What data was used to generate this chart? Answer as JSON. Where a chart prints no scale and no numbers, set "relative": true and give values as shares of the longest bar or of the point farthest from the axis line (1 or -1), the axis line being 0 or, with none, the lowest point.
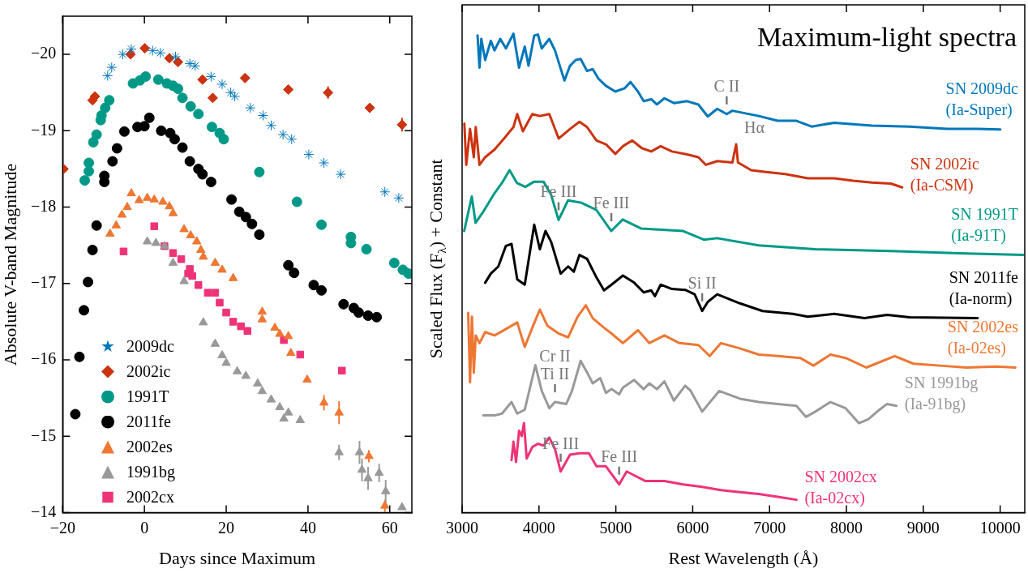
{
  "chart_data": [
    {
      "type": "scatter",
      "xlabel": "Days since Maximum",
      "ylabel": "Absolute V-band Magnitude",
      "xlim": [
        -20,
        65.4
      ],
      "ylim": [
        -14,
        -20.5
      ],
      "xticks": [
        -20,
        0,
        20,
        40,
        60
      ],
      "yticks": [
        -20,
        -19,
        -18,
        -17,
        -16,
        -15,
        -14
      ],
      "grid": false,
      "legend": "bottom left",
      "series": [
        {
          "name": "2009dc",
          "color": "#0077bb",
          "marker": "cross",
          "x": [
            -9.0,
            -8.0,
            -5.3,
            -3.2,
            2.0,
            3.9,
            7.6,
            11.1,
            12.4,
            16.3,
            19.0,
            21.1,
            22.1,
            25.9,
            29.0,
            31.0,
            33.9,
            36.0,
            40.2,
            43.9,
            48.0,
            58.8,
            62.2
          ],
          "values": [
            -19.72,
            -19.83,
            -20.0,
            -20.07,
            -20.05,
            -20.02,
            -19.97,
            -19.88,
            -19.85,
            -19.71,
            -19.61,
            -19.5,
            -19.45,
            -19.3,
            -19.2,
            -19.07,
            -18.95,
            -18.89,
            -18.69,
            -18.58,
            -18.43,
            -18.2,
            -18.12
          ]
        },
        {
          "name": "2002ic",
          "color": "#cc3311",
          "marker": "diamond",
          "x": [
            -19.8,
            -12.7,
            -12.1,
            -3.4,
            0.1,
            6.1,
            8.2,
            14.2,
            16.7,
            24.6,
            35.2,
            44.9,
            55.1,
            63.0
          ],
          "values": [
            -18.5,
            -19.4,
            -19.45,
            -20.0,
            -20.08,
            -19.95,
            -19.9,
            -19.67,
            -19.43,
            -19.69,
            -19.54,
            -19.5,
            -19.3,
            -19.08
          ],
          "errors": [
            null,
            null,
            null,
            null,
            null,
            null,
            null,
            null,
            null,
            null,
            null,
            0.08,
            null,
            0.09
          ]
        },
        {
          "name": "1991T",
          "color": "#009988",
          "marker": "circle",
          "x": [
            -14.6,
            -13.6,
            -13.6,
            -12.5,
            -11.7,
            -10.7,
            -10.5,
            -9.6,
            -8.6,
            -2.8,
            -1.1,
            0.3,
            3.4,
            5.5,
            7.0,
            8.2,
            9.3,
            11.3,
            13.2,
            16.5,
            18.4,
            19.4,
            28.1,
            37.3,
            43.3,
            50.5,
            50.5,
            54.3,
            61.1,
            63.2,
            64.6
          ],
          "values": [
            -18.35,
            -18.47,
            -18.58,
            -18.85,
            -18.95,
            -19.14,
            -19.2,
            -19.3,
            -19.4,
            -19.62,
            -19.66,
            -19.71,
            -19.67,
            -19.62,
            -19.59,
            -19.55,
            -19.43,
            -19.32,
            -19.22,
            -19.05,
            -18.97,
            -18.89,
            -18.46,
            -18.07,
            -17.77,
            -17.61,
            -17.53,
            -17.45,
            -17.27,
            -17.18,
            -17.13
          ]
        },
        {
          "name": "2011fe",
          "color": "#000000",
          "marker": "circle",
          "x": [
            -16.9,
            -15.9,
            -14.8,
            -13.8,
            -12.7,
            -11.7,
            -9.8,
            -9.8,
            -7.8,
            -6.7,
            -4.9,
            -1.7,
            0.0,
            1.2,
            4.1,
            6.3,
            7.4,
            9.3,
            11.1,
            13.2,
            14.2,
            16.3,
            21.3,
            23.2,
            24.8,
            26.3,
            28.1,
            35.2,
            36.6,
            41.4,
            43.3,
            48.7,
            51.2,
            52.4,
            54.7,
            56.8
          ],
          "values": [
            -15.29,
            -16.04,
            -16.65,
            -17.02,
            -17.44,
            -17.76,
            -18.33,
            -18.41,
            -18.6,
            -18.77,
            -18.99,
            -19.05,
            -19.06,
            -19.17,
            -19.0,
            -18.97,
            -18.89,
            -18.78,
            -18.6,
            -18.5,
            -18.43,
            -18.33,
            -18.1,
            -17.94,
            -17.87,
            -17.78,
            -17.64,
            -17.24,
            -17.14,
            -16.98,
            -16.91,
            -16.73,
            -16.68,
            -16.62,
            -16.58,
            -16.56
          ]
        },
        {
          "name": "2002es",
          "color": "#ee7733",
          "marker": "triangle",
          "x": [
            -8.4,
            -6.9,
            -5.5,
            -4.2,
            -3.2,
            -1.3,
            0.7,
            2.4,
            4.5,
            6.1,
            7.0,
            9.7,
            11.3,
            12.8,
            13.8,
            14.4,
            17.3,
            19.0,
            21.7,
            28.8,
            28.8,
            31.9,
            33.1,
            35.2,
            35.8,
            39.8,
            43.9,
            47.6,
            54.9,
            58.8
          ],
          "values": [
            -17.65,
            -17.76,
            -17.9,
            -18.0,
            -18.18,
            -18.09,
            -18.12,
            -18.1,
            -18.07,
            -18.01,
            -17.92,
            -17.71,
            -17.63,
            -17.55,
            -17.44,
            -17.35,
            -17.27,
            -17.18,
            -17.07,
            -16.63,
            -16.53,
            -16.42,
            -16.34,
            -16.31,
            -16.09,
            -15.74,
            -15.44,
            -15.31,
            -14.74,
            -14.09
          ],
          "errors": [
            null,
            null,
            null,
            null,
            null,
            null,
            null,
            null,
            null,
            null,
            null,
            null,
            null,
            null,
            null,
            null,
            null,
            null,
            null,
            null,
            null,
            null,
            null,
            null,
            null,
            null,
            0.1,
            0.15,
            0.08,
            0.08
          ]
        },
        {
          "name": "1991bg",
          "color": "#999999",
          "marker": "triangle",
          "x": [
            0.7,
            2.8,
            4.9,
            7.0,
            9.7,
            14.4,
            17.3,
            19.0,
            20.0,
            22.7,
            24.8,
            27.7,
            28.8,
            31.0,
            33.1,
            35.2,
            34.1,
            38.1,
            47.6,
            52.6,
            53.2,
            54.7,
            57.4,
            59.0,
            63.0
          ],
          "values": [
            -17.55,
            -17.53,
            -17.49,
            -17.27,
            -17.03,
            -16.49,
            -16.21,
            -16.06,
            -15.96,
            -15.85,
            -15.79,
            -15.69,
            -15.59,
            -15.48,
            -15.38,
            -15.31,
            -15.23,
            -15.21,
            -14.79,
            -14.79,
            -14.56,
            -14.45,
            -14.52,
            -14.28,
            -14.07
          ],
          "errors": [
            null,
            null,
            null,
            null,
            null,
            null,
            null,
            null,
            null,
            null,
            null,
            null,
            null,
            null,
            null,
            null,
            null,
            null,
            0.1,
            0.15,
            0.15,
            0.15,
            0.12,
            0.15,
            null
          ]
        },
        {
          "name": "2002cx",
          "color": "#ee3377",
          "marker": "square",
          "x": [
            -5.1,
            2.4,
            4.9,
            7.0,
            9.0,
            10.7,
            11.1,
            11.7,
            13.2,
            15.5,
            17.3,
            18.4,
            20.0,
            21.7,
            23.6,
            25.2,
            34.1,
            38.1,
            48.3
          ],
          "values": [
            -17.42,
            -17.75,
            -17.49,
            -17.4,
            -17.32,
            -17.13,
            -17.19,
            -17.1,
            -16.98,
            -16.88,
            -16.88,
            -16.75,
            -16.62,
            -16.5,
            -16.44,
            -16.38,
            -16.26,
            -16.07,
            -15.86
          ]
        }
      ]
    },
    {
      "type": "line",
      "title": "Maximum-light spectra",
      "xlabel": "Rest Wavelength (Å)",
      "ylabel": "Scaled Flux (F$_{λ}$) + Constant",
      "relative": true,
      "xlim": [
        3000,
        10320
      ],
      "xticks": [
        3000,
        4000,
        5000,
        6000,
        7000,
        8000,
        9000,
        10000
      ],
      "grid": false,
      "legend": false,
      "annotations": [
        {
          "text": "C II",
          "x": 6442,
          "y": 0.832
        },
        {
          "text": "Hα",
          "x": 6565,
          "y": 0.769
        },
        {
          "text": "Fe III",
          "x": 4255,
          "y": 0.611
        },
        {
          "text": "Fe III",
          "x": 4941,
          "y": 0.588
        },
        {
          "text": "Si II",
          "x": 6123,
          "y": 0.421
        },
        {
          "text": "Cr II\nTi II",
          "x": 4208,
          "y": 0.231
        },
        {
          "text": "Fe III",
          "x": 4282,
          "y": 0.086
        },
        {
          "text": "Fe III",
          "x": 5043,
          "y": 0.059
        }
      ],
      "series": [
        {
          "name": "SN 2009dc (Ia-Super)",
          "color": "#0077bb",
          "x": [
            3201,
            3226,
            3250,
            3300,
            3373,
            3422,
            3496,
            3570,
            3668,
            3741,
            3815,
            3864,
            3938,
            3987,
            4036,
            4134,
            4208,
            4331,
            4404,
            4478,
            4542,
            4625,
            4699,
            4773,
            4871,
            4993,
            5116,
            5190,
            5288,
            5362,
            5460,
            5534,
            5632,
            5755,
            5926,
            6074,
            6196,
            6319,
            6442,
            6516,
            6859,
            7105,
            7350,
            7547,
            7841,
            8332,
            8823,
            9314,
            9707,
            10002
          ],
          "values": [
            0.996,
            0.929,
            0.989,
            0.945,
            0.985,
            0.965,
            0.989,
            0.969,
            1,
            0.929,
            0.973,
            0.933,
            0.996,
            0.998,
            0.969,
            0.989,
            0.965,
            0.902,
            0.933,
            0.945,
            0.947,
            0.922,
            0.926,
            0.906,
            0.891,
            0.879,
            0.886,
            0.899,
            0.879,
            0.859,
            0.863,
            0.852,
            0.865,
            0.855,
            0.859,
            0.852,
            0.827,
            0.843,
            0.832,
            0.839,
            0.828,
            0.818,
            0.818,
            0.806,
            0.814,
            0.808,
            0.806,
            0.801,
            0.801,
            0.8
          ]
        },
        {
          "name": "SN 2002ic (Ia-CSM)",
          "color": "#cc3311",
          "x": [
            3029,
            3054,
            3103,
            3152,
            3177,
            3226,
            3300,
            3422,
            3545,
            3668,
            3717,
            3791,
            3913,
            4011,
            4134,
            4257,
            4404,
            4527,
            4625,
            4748,
            4871,
            4993,
            5092,
            5214,
            5337,
            5460,
            5583,
            5730,
            5926,
            6074,
            6172,
            6319,
            6516,
            6565,
            6589,
            6761,
            6957,
            7203,
            7498,
            7841,
            8087,
            8332,
            8578,
            8725
          ],
          "values": [
            0.812,
            0.726,
            0.801,
            0.742,
            0.805,
            0.726,
            0.742,
            0.758,
            0.781,
            0.805,
            0.832,
            0.796,
            0.832,
            0.828,
            0.832,
            0.781,
            0.801,
            0.816,
            0.805,
            0.777,
            0.769,
            0.749,
            0.765,
            0.777,
            0.761,
            0.754,
            0.765,
            0.754,
            0.748,
            0.742,
            0.726,
            0.734,
            0.731,
            0.769,
            0.731,
            0.715,
            0.711,
            0.707,
            0.698,
            0.698,
            0.693,
            0.689,
            0.687,
            0.679
          ]
        },
        {
          "name": "SN 1991T (Ia-91T)",
          "color": "#009988",
          "x": [
            3027,
            3126,
            3175,
            3274,
            3422,
            3517,
            3617,
            3715,
            3823,
            3936,
            4059,
            4157,
            4255,
            4378,
            4551,
            4746,
            4941,
            5089,
            5332,
            5876,
            6144,
            6318,
            6858,
            7594,
            8577,
            9560,
            10300
          ],
          "values": [
            0.588,
            0.66,
            0.605,
            0.628,
            0.667,
            0.688,
            0.715,
            0.688,
            0.68,
            0.691,
            0.691,
            0.664,
            0.611,
            0.652,
            0.647,
            0.632,
            0.588,
            0.612,
            0.593,
            0.588,
            0.57,
            0.573,
            0.558,
            0.55,
            0.546,
            0.541,
            0.538
          ]
        },
        {
          "name": "SN 2011fe (Ia-norm)",
          "color": "#000000",
          "x": [
            3300,
            3373,
            3471,
            3570,
            3643,
            3717,
            3815,
            3938,
            4011,
            4085,
            4159,
            4282,
            4380,
            4453,
            4527,
            4625,
            4748,
            4846,
            4944,
            5092,
            5239,
            5362,
            5460,
            5509,
            5583,
            5730,
            5902,
            6025,
            6123,
            6196,
            6319,
            6614,
            6908,
            7301,
            7498,
            7841,
            8234,
            8529,
            8823,
            9707
          ],
          "values": [
            0.48,
            0.499,
            0.514,
            0.557,
            0.561,
            0.487,
            0.476,
            0.601,
            0.55,
            0.588,
            0.565,
            0.499,
            0.514,
            0.503,
            0.538,
            0.53,
            0.491,
            0.464,
            0.476,
            0.495,
            0.48,
            0.46,
            0.464,
            0.452,
            0.476,
            0.467,
            0.465,
            0.456,
            0.421,
            0.44,
            0.456,
            0.437,
            0.421,
            0.415,
            0.409,
            0.415,
            0.406,
            0.413,
            0.408,
            0.406
          ]
        },
        {
          "name": "SN 2002es (Ia-02es)",
          "color": "#ee7733",
          "x": [
            3079,
            3103,
            3128,
            3152,
            3177,
            3226,
            3300,
            3422,
            3545,
            3717,
            3815,
            3913,
            4011,
            4110,
            4257,
            4380,
            4502,
            4610,
            4699,
            4846,
            4944,
            5092,
            5288,
            5435,
            5632,
            5828,
            6074,
            6221,
            6368,
            6614,
            6859,
            7105,
            7399,
            7571,
            7792,
            7989,
            8259,
            8627,
            8872,
            9216,
            9560,
            9953,
            10198
          ],
          "values": [
            0.417,
            0.272,
            0.409,
            0.292,
            0.37,
            0.354,
            0.377,
            0.37,
            0.381,
            0.397,
            0.346,
            0.386,
            0.424,
            0.39,
            0.374,
            0.366,
            0.409,
            0.433,
            0.406,
            0.386,
            0.374,
            0.354,
            0.381,
            0.354,
            0.37,
            0.354,
            0.35,
            0.327,
            0.354,
            0.343,
            0.33,
            0.327,
            0.323,
            0.307,
            0.33,
            0.323,
            0.303,
            0.327,
            0.311,
            0.307,
            0.303,
            0.305,
            0.303
          ]
        },
        {
          "name": "SN 1991bg (Ia-91bg)",
          "color": "#999999",
          "x": [
            3275,
            3422,
            3520,
            3643,
            3717,
            3815,
            3953,
            4036,
            4134,
            4208,
            4355,
            4429,
            4542,
            4625,
            4699,
            4797,
            4871,
            4944,
            5043,
            5092,
            5239,
            5362,
            5435,
            5534,
            5632,
            5755,
            5902,
            5975,
            6123,
            6344,
            6614,
            6859,
            7105,
            7350,
            7473,
            7596,
            7792,
            7989,
            8161,
            8283,
            8430,
            8529,
            8651
          ],
          "values": [
            0.203,
            0.203,
            0.207,
            0.231,
            0.207,
            0.215,
            0.308,
            0.254,
            0.218,
            0.231,
            0.227,
            0.254,
            0.317,
            0.293,
            0.27,
            0.281,
            0.25,
            0.258,
            0.247,
            0.261,
            0.277,
            0.258,
            0.27,
            0.258,
            0.274,
            0.234,
            0.265,
            0.254,
            0.211,
            0.254,
            0.238,
            0.231,
            0.227,
            0.223,
            0.2,
            0.211,
            0.231,
            0.218,
            0.187,
            0.195,
            0.215,
            0.227,
            0.223
          ]
        },
        {
          "name": "SN 2002cx (Ia-02cx)",
          "color": "#ee3377",
          "x": [
            3643,
            3668,
            3702,
            3741,
            3776,
            3805,
            3840,
            3913,
            3987,
            4061,
            4134,
            4208,
            4282,
            4404,
            4527,
            4650,
            4748,
            4871,
            5043,
            5141,
            5239,
            5386,
            5632,
            5877,
            6123,
            6368,
            6614,
            6859,
            7105,
            7350
          ],
          "values": [
            0.11,
            0.148,
            0.106,
            0.171,
            0.16,
            0.187,
            0.113,
            0.137,
            0.144,
            0.14,
            0.157,
            0.133,
            0.086,
            0.121,
            0.124,
            0.124,
            0.097,
            0.097,
            0.059,
            0.086,
            0.078,
            0.066,
            0.066,
            0.059,
            0.054,
            0.047,
            0.043,
            0.039,
            0.033,
            0.027
          ]
        }
      ]
    }
  ]
}
